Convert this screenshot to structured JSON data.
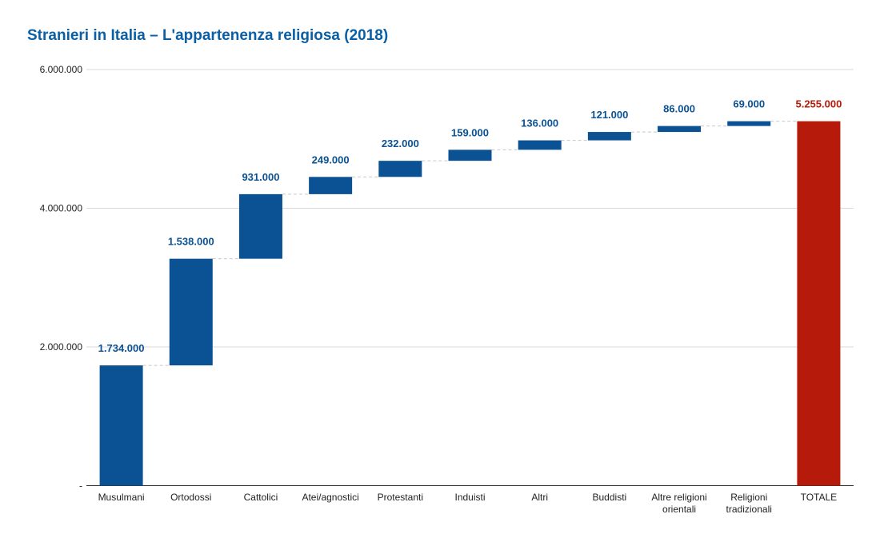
{
  "chart_data": {
    "type": "bar",
    "subtype": "waterfall",
    "title": "Stranieri in Italia – L'appartenenza religiosa (2018)",
    "categories": [
      "Musulmani",
      "Ortodossi",
      "Cattolici",
      "Atei/agnostici",
      "Protestanti",
      "Induisti",
      "Altri",
      "Buddisti",
      "Altre religioni orientali",
      "Religioni tradizionali",
      "TOTALE"
    ],
    "category_lines": [
      [
        "Musulmani"
      ],
      [
        "Ortodossi"
      ],
      [
        "Cattolici"
      ],
      [
        "Atei/agnostici"
      ],
      [
        "Protestanti"
      ],
      [
        "Induisti"
      ],
      [
        "Altri"
      ],
      [
        "Buddisti"
      ],
      [
        "Altre religioni",
        "orientali"
      ],
      [
        "Religioni",
        "tradizionali"
      ],
      [
        "TOTALE"
      ]
    ],
    "values": [
      1734000,
      1538000,
      931000,
      249000,
      232000,
      159000,
      136000,
      121000,
      86000,
      69000,
      5255000
    ],
    "labels": [
      "1.734.000",
      "1.538.000",
      "931.000",
      "249.000",
      "232.000",
      "159.000",
      "136.000",
      "121.000",
      "86.000",
      "69.000",
      "5.255.000"
    ],
    "total_index": 10,
    "ylim": [
      0,
      6000000
    ],
    "yticks": [
      0,
      2000000,
      4000000,
      6000000
    ],
    "ytick_labels": [
      "-",
      "2.000.000",
      "4.000.000",
      "6.000.000"
    ],
    "grid": true,
    "colors": {
      "increase": "#0b5294",
      "total": "#b51a0a",
      "label_increase": "#0b5294",
      "label_total": "#b51a0a",
      "title": "#0b5fa5"
    }
  }
}
